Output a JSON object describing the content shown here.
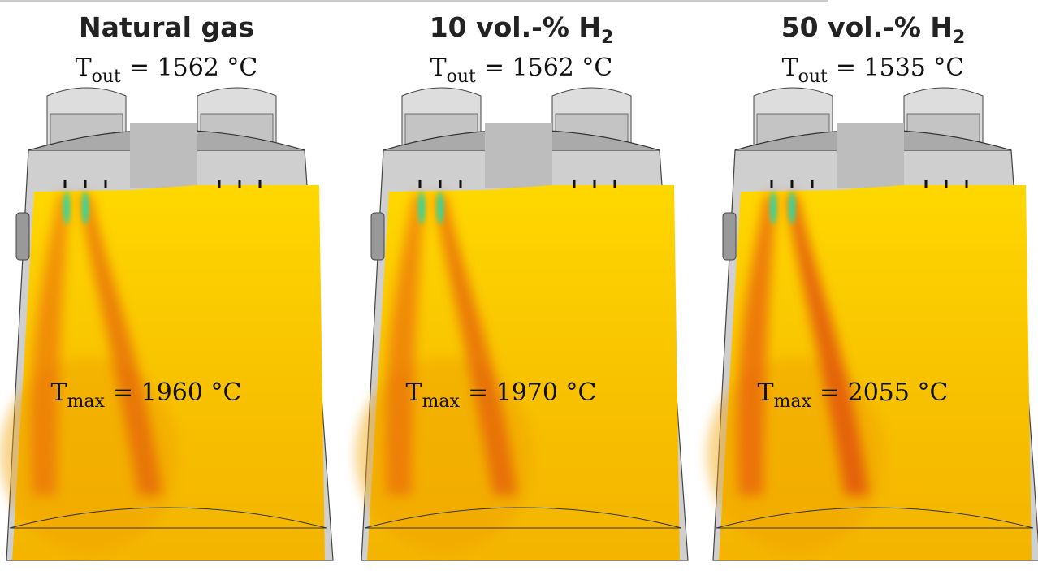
{
  "panels": [
    {
      "title": {
        "text": "Natural gas",
        "sub": null
      },
      "t_out": {
        "symbol": "T",
        "sub": "out",
        "value": "= 1562 °C"
      },
      "t_max": {
        "symbol": "T",
        "sub": "max",
        "value": "= 1960 °C"
      }
    },
    {
      "title": {
        "text": "10 vol.-% H",
        "sub": "2"
      },
      "t_out": {
        "symbol": "T",
        "sub": "out",
        "value": "= 1562 °C"
      },
      "t_max": {
        "symbol": "T",
        "sub": "max",
        "value": "= 1970 °C"
      }
    },
    {
      "title": {
        "text": "50 vol.-% H",
        "sub": "2"
      },
      "t_out": {
        "symbol": "T",
        "sub": "out",
        "value": "= 1535 °C"
      },
      "t_max": {
        "symbol": "T",
        "sub": "max",
        "value": "= 2055 °C"
      }
    }
  ]
}
